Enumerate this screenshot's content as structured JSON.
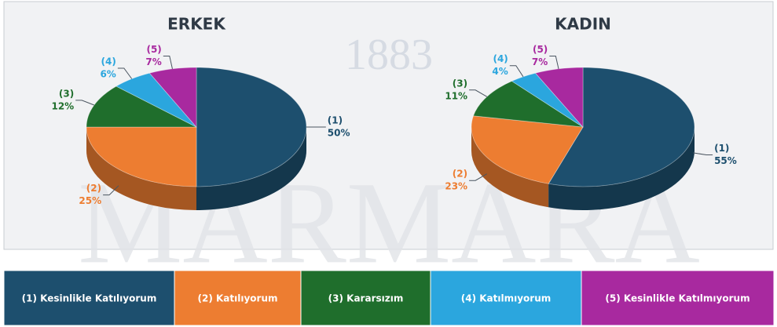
{
  "chart_data": [
    {
      "type": "pie",
      "title": "ERKEK",
      "categories": [
        "(1) Kesinlikle Katılıyorum",
        "(2) Katılıyorum",
        "(3) Kararsızım",
        "(4) Katılmıyorum",
        "(5) Kesinlikle Katılmıyorum"
      ],
      "codes": [
        "(1)",
        "(2)",
        "(3)",
        "(4)",
        "(5)"
      ],
      "values": [
        50,
        25,
        12,
        6,
        7
      ],
      "value_labels": [
        "50%",
        "25%",
        "12%",
        "6%",
        "7%"
      ],
      "colors": [
        "#1d4f6e",
        "#ed7d31",
        "#1f6e2c",
        "#2ba6de",
        "#a8299f"
      ]
    },
    {
      "type": "pie",
      "title": "KADIN",
      "codes": [
        "(1)",
        "(2)",
        "(3)",
        "(4)",
        "(5)"
      ],
      "values": [
        55,
        23,
        11,
        4,
        7
      ],
      "value_labels": [
        "55%",
        "23%",
        "11%",
        "4%",
        "7%"
      ],
      "colors": [
        "#1d4f6e",
        "#ed7d31",
        "#1f6e2c",
        "#2ba6de",
        "#a8299f"
      ]
    }
  ],
  "watermark": [
    "1883",
    "MARMARA"
  ]
}
